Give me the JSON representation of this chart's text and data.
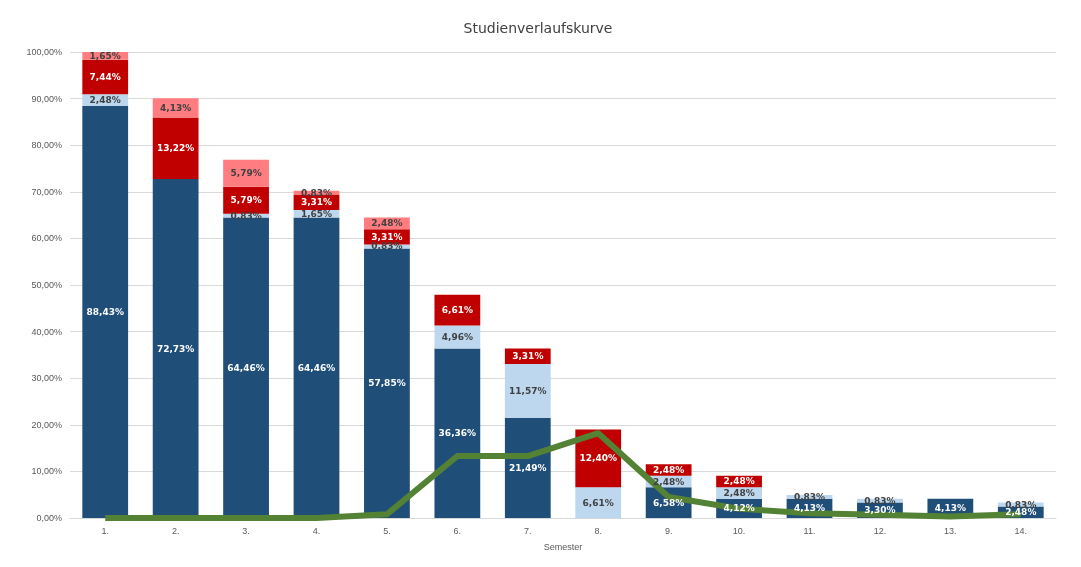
{
  "chart_data": {
    "type": "bar",
    "title": "Studienverlaufskurve",
    "xlabel": "Semester",
    "stacked": true,
    "categories": [
      "1.",
      "2.",
      "3.",
      "4.",
      "5.",
      "6.",
      "7.",
      "8.",
      "9.",
      "10.",
      "11.",
      "12.",
      "13.",
      "14."
    ],
    "series": [
      {
        "color": "#1f4e79",
        "values": [
          88.43,
          72.73,
          64.46,
          64.46,
          57.85,
          36.36,
          21.49,
          null,
          6.58,
          4.12,
          4.13,
          3.3,
          4.13,
          2.48
        ],
        "value_labels": [
          "88,43%",
          "72,73%",
          "64,46%",
          "64,46%",
          "57,85%",
          "36,36%",
          "21,49%",
          null,
          "6,58%",
          "4,12%",
          "4,13%",
          "3,30%",
          "4,13%",
          "2,48%"
        ]
      },
      {
        "color": "#bdd7ee",
        "values": [
          2.48,
          null,
          0.83,
          1.65,
          0.83,
          4.96,
          11.57,
          6.61,
          2.48,
          2.48,
          0.83,
          0.83,
          null,
          0.83
        ],
        "value_labels": [
          "2,48%",
          null,
          "0,83%",
          "1,65%",
          "0,83%",
          "4,96%",
          "11,57%",
          "6,61%",
          "2,48%",
          "2,48%",
          "0,83%",
          "0,83%",
          null,
          "0,83%"
        ]
      },
      {
        "color": "#c00000",
        "values": [
          7.44,
          13.22,
          5.79,
          3.31,
          3.31,
          6.61,
          3.31,
          12.4,
          2.48,
          2.48,
          null,
          null,
          null,
          null
        ],
        "value_labels": [
          "7,44%",
          "13,22%",
          "5,79%",
          "3,31%",
          "3,31%",
          "6,61%",
          "3,31%",
          "12,40%",
          "2,48%",
          "2,48%",
          null,
          null,
          null,
          null
        ]
      },
      {
        "color": "#ff7c80",
        "values": [
          1.65,
          4.13,
          5.79,
          0.83,
          2.48,
          null,
          null,
          null,
          null,
          null,
          null,
          null,
          null,
          null
        ],
        "value_labels": [
          "1,65%",
          "4,13%",
          "5,79%",
          "0,83%",
          "2,48%",
          null,
          null,
          null,
          null,
          null,
          null,
          null,
          null,
          null
        ]
      },
      {
        "type": "line",
        "color": "#548235",
        "values": [
          0,
          0,
          0,
          0,
          0.8,
          13.3,
          13.3,
          18.2,
          4.5,
          2.0,
          1.0,
          0.7,
          0.3,
          0.8
        ]
      }
    ],
    "ylim": [
      0,
      100
    ],
    "yticks": [
      {
        "value": 0,
        "label": "0,00%"
      },
      {
        "value": 10,
        "label": "10,00%"
      },
      {
        "value": 20,
        "label": "20,00%"
      },
      {
        "value": 30,
        "label": "30,00%"
      },
      {
        "value": 40,
        "label": "40,00%"
      },
      {
        "value": 50,
        "label": "50,00%"
      },
      {
        "value": 60,
        "label": "60,00%"
      },
      {
        "value": 70,
        "label": "70,00%"
      },
      {
        "value": 80,
        "label": "80,00%"
      },
      {
        "value": 90,
        "label": "90,00%"
      },
      {
        "value": 100,
        "label": "100,00%"
      }
    ],
    "grid": "y",
    "marker": "none"
  }
}
